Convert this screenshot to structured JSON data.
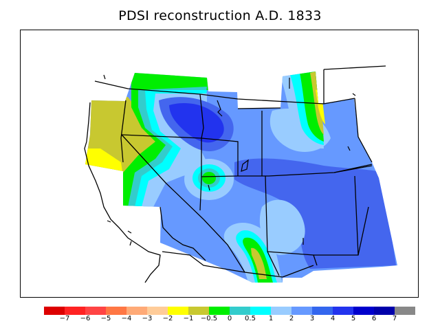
{
  "title": "PDSI reconstruction A.D. 1833",
  "legend": {
    "colors": [
      "#dd0000",
      "#ff2222",
      "#ff4444",
      "#ff7744",
      "#ffaa77",
      "#ffcc99",
      "#ffff00",
      "#c8c830",
      "#00ee00",
      "#33cccc",
      "#00ffff",
      "#99ccff",
      "#6699ff",
      "#3366ee",
      "#2233ee",
      "#0000cc",
      "#0000aa",
      "#888888"
    ],
    "labels": [
      "−7",
      "−6",
      "−5",
      "−4",
      "−3",
      "−2",
      "−1",
      "−0.5",
      "0",
      "0.5",
      "1",
      "2",
      "3",
      "4",
      "5",
      "6",
      "7"
    ]
  },
  "palette": {
    "olive": "#c8c830",
    "yellow": "#ffff00",
    "green": "#00ee00",
    "teal": "#33cccc",
    "cyan": "#00ffff",
    "lightblue": "#99ccff",
    "medblue": "#6699ff",
    "blue": "#4466ee",
    "darkblue": "#2233ee"
  }
}
